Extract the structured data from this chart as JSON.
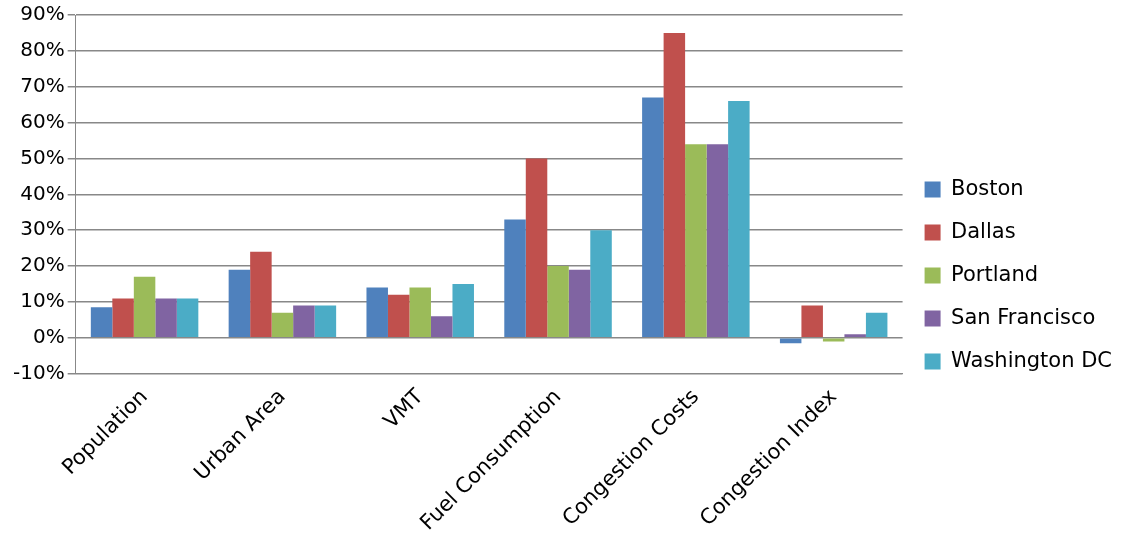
{
  "chart_data": {
    "type": "bar",
    "categories": [
      "Population",
      "Urban Area",
      "VMT",
      "Fuel Consumption",
      "Congestion Costs",
      "Congestion Index"
    ],
    "series": [
      {
        "name": "Boston",
        "color": "#4f81bd",
        "values": [
          8.5,
          19,
          14,
          33,
          67,
          -1.5
        ]
      },
      {
        "name": "Dallas",
        "color": "#c0504d",
        "values": [
          11,
          24,
          12,
          50,
          85,
          9
        ]
      },
      {
        "name": "Portland",
        "color": "#9bbb59",
        "values": [
          17,
          7,
          14,
          20,
          54,
          -1
        ]
      },
      {
        "name": "San Francisco",
        "color": "#8064a2",
        "values": [
          11,
          9,
          6,
          19,
          54,
          1
        ]
      },
      {
        "name": "Washington DC",
        "color": "#4bacc6",
        "values": [
          11,
          9,
          15,
          30,
          66,
          7
        ]
      }
    ],
    "ylim": [
      -10,
      90
    ],
    "yticks": [
      {
        "value": -10,
        "label": "-10%"
      },
      {
        "value": 0,
        "label": "0%"
      },
      {
        "value": 10,
        "label": "10%"
      },
      {
        "value": 20,
        "label": "20%"
      },
      {
        "value": 30,
        "label": "30%"
      },
      {
        "value": 40,
        "label": "40%"
      },
      {
        "value": 50,
        "label": "50%"
      },
      {
        "value": 60,
        "label": "60%"
      },
      {
        "value": 70,
        "label": "70%"
      },
      {
        "value": 80,
        "label": "80%"
      },
      {
        "value": 90,
        "label": "90%"
      }
    ],
    "grid": "y",
    "legend": "right"
  }
}
